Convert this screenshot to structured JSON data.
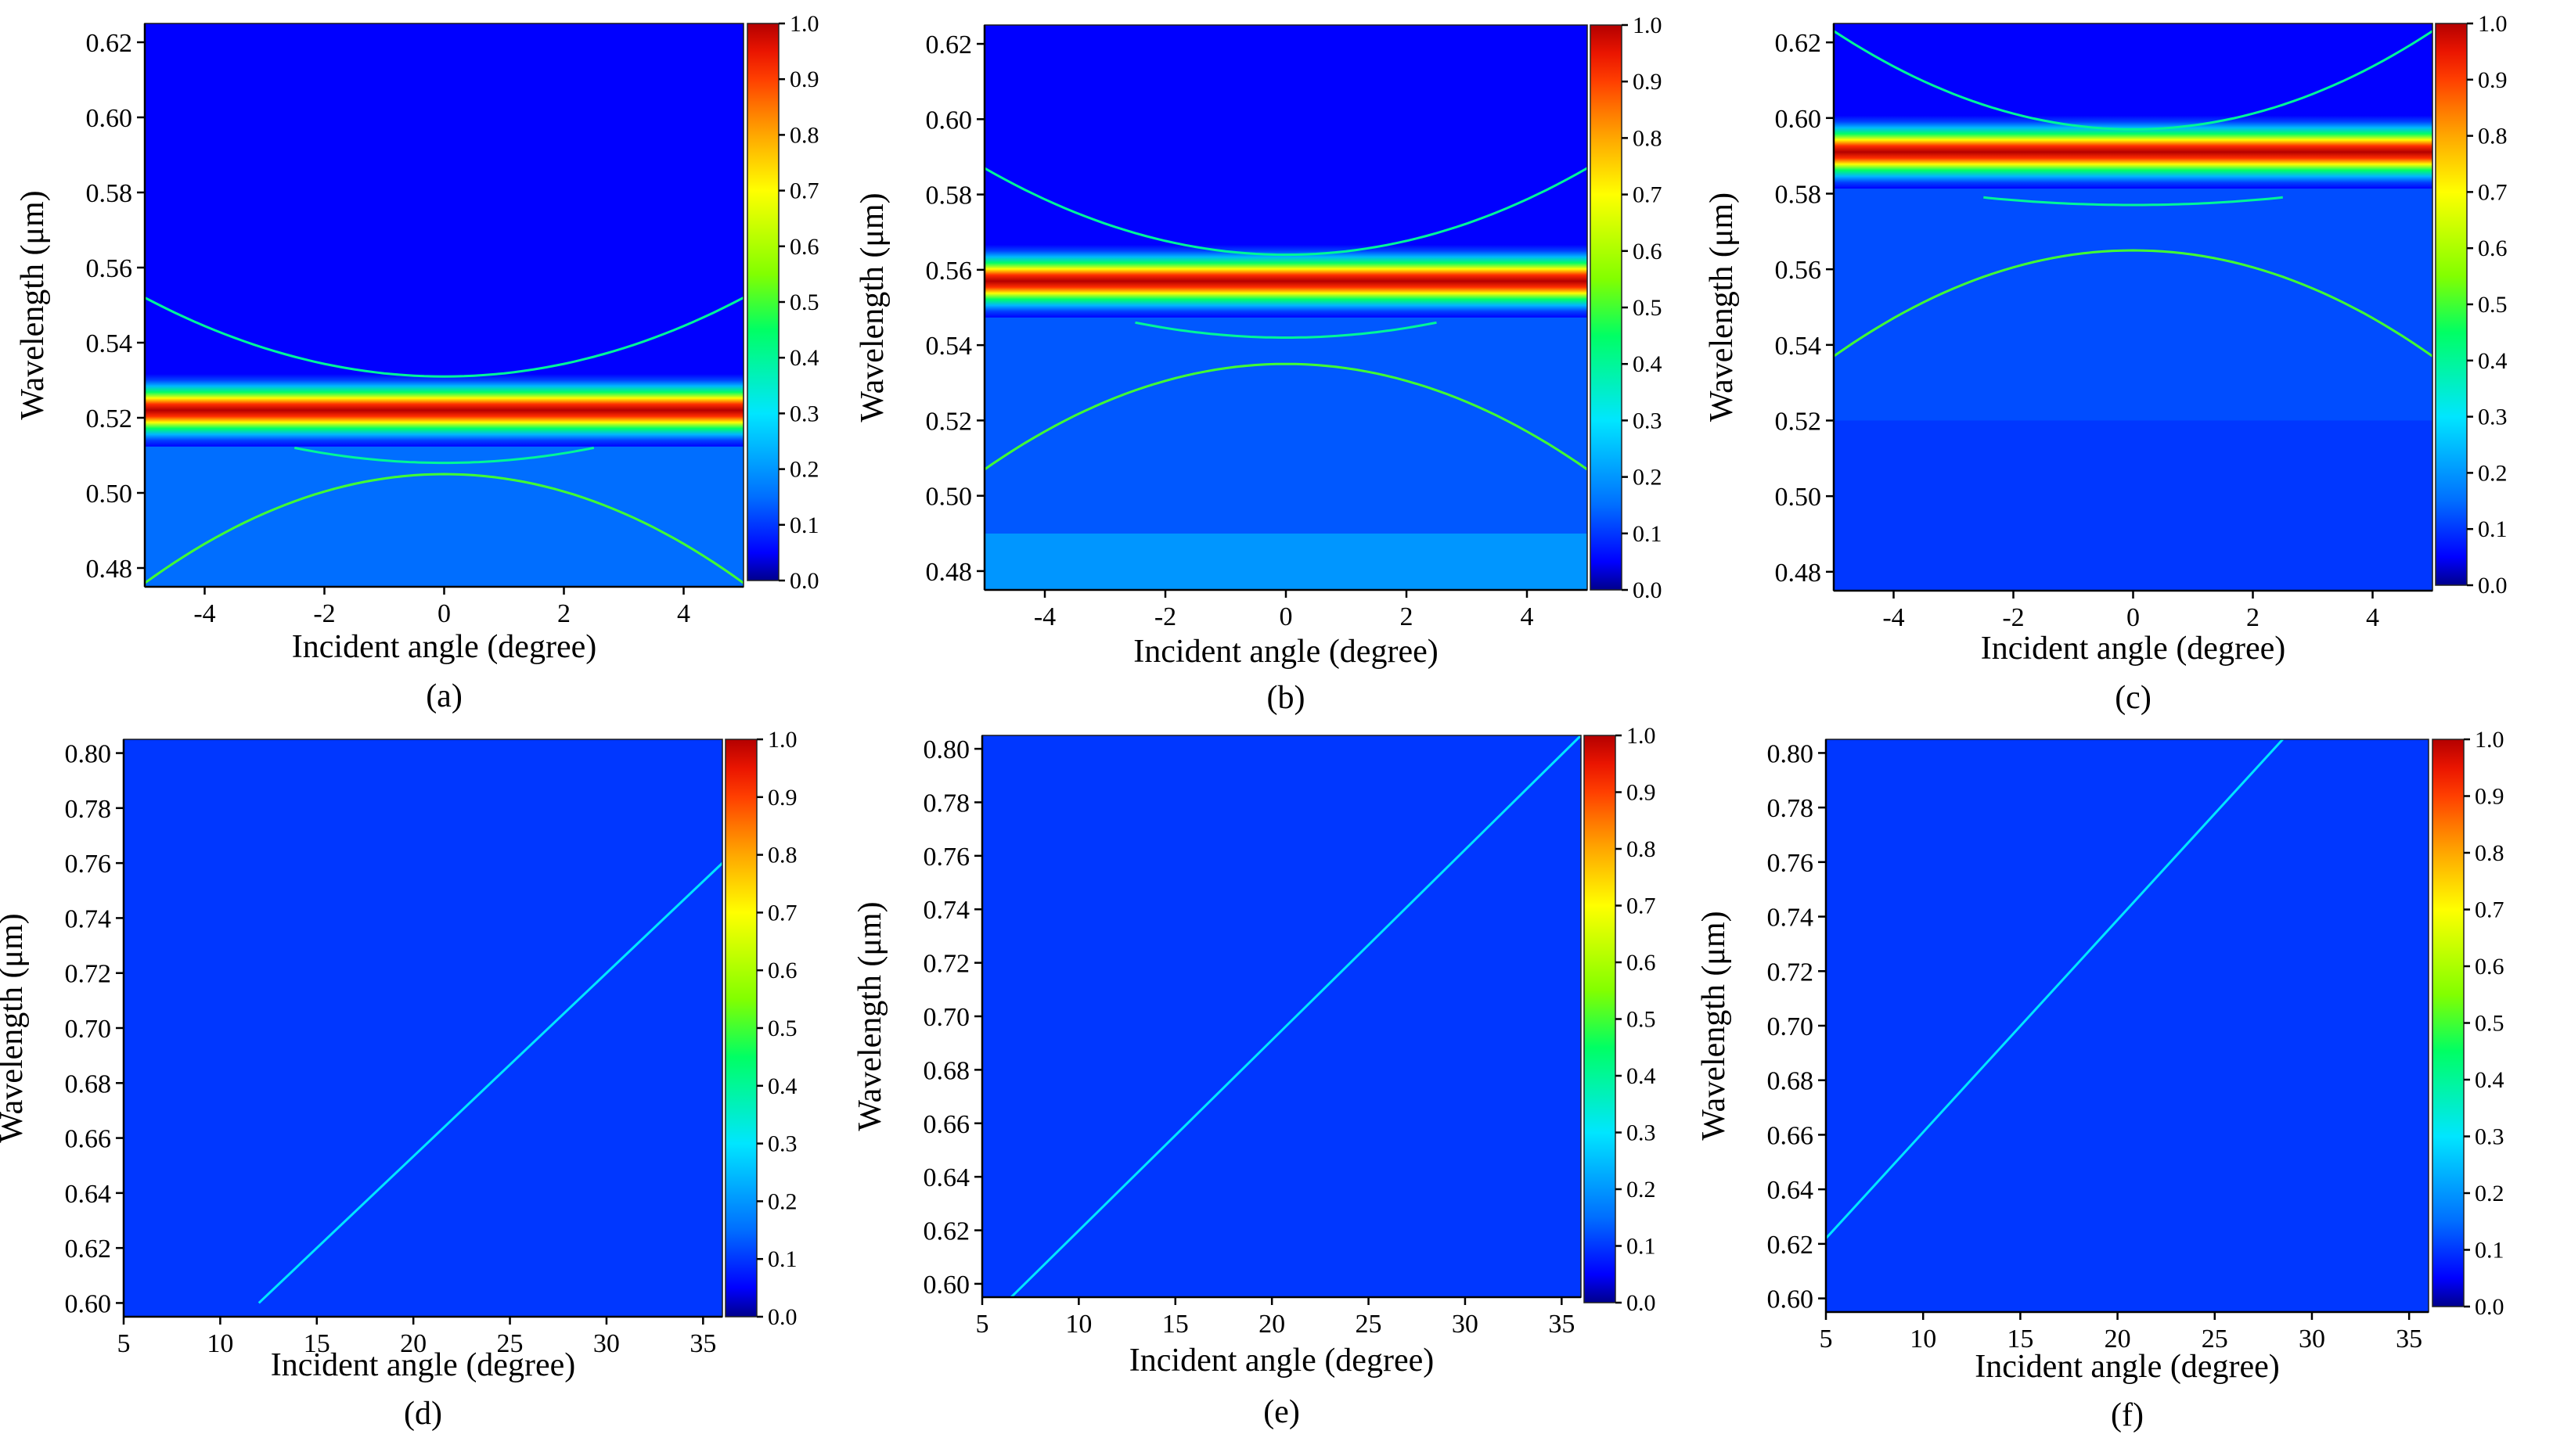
{
  "chart_data": [
    {
      "type": "heatmap",
      "panel": "(a)",
      "xlabel": "Incident angle (degree)",
      "ylabel": "Wavelength (μm)",
      "xlim": [
        -5,
        5
      ],
      "ylim": [
        0.475,
        0.625
      ],
      "xticks": [
        -4,
        -2,
        0,
        2,
        4
      ],
      "xtick_labels": [
        "-4",
        "-2",
        "0",
        "2",
        "4"
      ],
      "yticks": [
        0.48,
        0.5,
        0.52,
        0.54,
        0.56,
        0.58,
        0.6,
        0.62
      ],
      "ytick_labels": [
        "0.48",
        "0.50",
        "0.52",
        "0.54",
        "0.56",
        "0.58",
        "0.60",
        "0.62"
      ],
      "colorbar": {
        "range": [
          0.0,
          1.0
        ],
        "ticks": [
          0.0,
          0.1,
          0.2,
          0.3,
          0.4,
          0.5,
          0.6,
          0.7,
          0.8,
          0.9,
          1.0
        ],
        "tick_labels": [
          "0.0",
          "0.1",
          "0.2",
          "0.3",
          "0.4",
          "0.5",
          "0.6",
          "0.7",
          "0.8",
          "0.9",
          "1.0"
        ]
      },
      "background": 0.05,
      "regions": [
        {
          "from": 0.475,
          "to": 0.52,
          "value": 0.15
        }
      ],
      "bands": [
        {
          "center": 0.522,
          "width": 0.0042,
          "peak": 1.0
        }
      ],
      "curves": [
        {
          "type": "upper",
          "min": 0.531,
          "edge": 0.552,
          "value": 0.4
        },
        {
          "type": "lower",
          "max": 0.505,
          "edge": 0.476,
          "value": 0.5
        },
        {
          "type": "upper",
          "min": 0.508,
          "edge": 0.512,
          "value": 0.4,
          "span": 2.5
        }
      ]
    },
    {
      "type": "heatmap",
      "panel": "(b)",
      "xlabel": "Incident angle (degree)",
      "ylabel": "Wavelength (μm)",
      "xlim": [
        -5,
        5
      ],
      "ylim": [
        0.475,
        0.625
      ],
      "xticks": [
        -4,
        -2,
        0,
        2,
        4
      ],
      "xtick_labels": [
        "-4",
        "-2",
        "0",
        "2",
        "4"
      ],
      "yticks": [
        0.48,
        0.5,
        0.52,
        0.54,
        0.56,
        0.58,
        0.6,
        0.62
      ],
      "ytick_labels": [
        "0.48",
        "0.50",
        "0.52",
        "0.54",
        "0.56",
        "0.58",
        "0.60",
        "0.62"
      ],
      "colorbar": {
        "range": [
          0.0,
          1.0
        ],
        "ticks": [
          0.0,
          0.1,
          0.2,
          0.3,
          0.4,
          0.5,
          0.6,
          0.7,
          0.8,
          0.9,
          1.0
        ],
        "tick_labels": [
          "0.0",
          "0.1",
          "0.2",
          "0.3",
          "0.4",
          "0.5",
          "0.6",
          "0.7",
          "0.8",
          "0.9",
          "1.0"
        ]
      },
      "background": 0.05,
      "regions": [
        {
          "from": 0.49,
          "to": 0.553,
          "value": 0.13
        },
        {
          "from": 0.475,
          "to": 0.49,
          "value": 0.2
        }
      ],
      "bands": [
        {
          "center": 0.557,
          "width": 0.0042,
          "peak": 1.0
        }
      ],
      "curves": [
        {
          "type": "upper",
          "min": 0.564,
          "edge": 0.587,
          "value": 0.4
        },
        {
          "type": "lower",
          "max": 0.535,
          "edge": 0.507,
          "value": 0.5
        },
        {
          "type": "upper",
          "min": 0.542,
          "edge": 0.546,
          "value": 0.4,
          "span": 2.5
        }
      ]
    },
    {
      "type": "heatmap",
      "panel": "(c)",
      "xlabel": "Incident angle (degree)",
      "ylabel": "Wavelength (μm)",
      "xlim": [
        -5,
        5
      ],
      "ylim": [
        0.475,
        0.625
      ],
      "xticks": [
        -4,
        -2,
        0,
        2,
        4
      ],
      "xtick_labels": [
        "-4",
        "-2",
        "0",
        "2",
        "4"
      ],
      "yticks": [
        0.48,
        0.5,
        0.52,
        0.54,
        0.56,
        0.58,
        0.6,
        0.62
      ],
      "ytick_labels": [
        "0.48",
        "0.50",
        "0.52",
        "0.54",
        "0.56",
        "0.58",
        "0.60",
        "0.62"
      ],
      "colorbar": {
        "range": [
          0.0,
          1.0
        ],
        "ticks": [
          0.0,
          0.1,
          0.2,
          0.3,
          0.4,
          0.5,
          0.6,
          0.7,
          0.8,
          0.9,
          1.0
        ],
        "tick_labels": [
          "0.0",
          "0.1",
          "0.2",
          "0.3",
          "0.4",
          "0.5",
          "0.6",
          "0.7",
          "0.8",
          "0.9",
          "1.0"
        ]
      },
      "background": 0.05,
      "regions": [
        {
          "from": 0.52,
          "to": 0.587,
          "value": 0.12
        },
        {
          "from": 0.475,
          "to": 0.52,
          "value": 0.1
        }
      ],
      "bands": [
        {
          "center": 0.591,
          "width": 0.0042,
          "peak": 1.0
        }
      ],
      "curves": [
        {
          "type": "upper",
          "min": 0.597,
          "edge": 0.623,
          "value": 0.4
        },
        {
          "type": "lower",
          "max": 0.565,
          "edge": 0.537,
          "value": 0.5
        },
        {
          "type": "upper",
          "min": 0.577,
          "edge": 0.579,
          "value": 0.4,
          "span": 2.5
        }
      ]
    },
    {
      "type": "heatmap",
      "panel": "(d)",
      "xlabel": "Incident angle (degree)",
      "ylabel": "Wavelength (μm)",
      "xlim": [
        5,
        36
      ],
      "ylim": [
        0.595,
        0.805
      ],
      "xticks": [
        5,
        10,
        15,
        20,
        25,
        30,
        35
      ],
      "xtick_labels": [
        "5",
        "10",
        "15",
        "20",
        "25",
        "30",
        "35"
      ],
      "yticks": [
        0.6,
        0.62,
        0.64,
        0.66,
        0.68,
        0.7,
        0.72,
        0.74,
        0.76,
        0.78,
        0.8
      ],
      "ytick_labels": [
        "0.60",
        "0.62",
        "0.64",
        "0.66",
        "0.68",
        "0.70",
        "0.72",
        "0.74",
        "0.76",
        "0.78",
        "0.80"
      ],
      "colorbar": {
        "range": [
          0.0,
          1.0
        ],
        "ticks": [
          0.0,
          0.1,
          0.2,
          0.3,
          0.4,
          0.5,
          0.6,
          0.7,
          0.8,
          0.9,
          1.0
        ],
        "tick_labels": [
          "0.0",
          "0.1",
          "0.2",
          "0.3",
          "0.4",
          "0.5",
          "0.6",
          "0.7",
          "0.8",
          "0.9",
          "1.0"
        ]
      },
      "background": 0.1,
      "regions": [],
      "bands": [],
      "curves": [
        {
          "type": "linear",
          "points": [
            [
              12,
              0.6
            ],
            [
              36,
              0.76
            ]
          ],
          "value": 0.3
        }
      ]
    },
    {
      "type": "heatmap",
      "panel": "(e)",
      "xlabel": "Incident angle (degree)",
      "ylabel": "Wavelength (μm)",
      "xlim": [
        5,
        36
      ],
      "ylim": [
        0.595,
        0.805
      ],
      "xticks": [
        5,
        10,
        15,
        20,
        25,
        30,
        35
      ],
      "xtick_labels": [
        "5",
        "10",
        "15",
        "20",
        "25",
        "30",
        "35"
      ],
      "yticks": [
        0.6,
        0.62,
        0.64,
        0.66,
        0.68,
        0.7,
        0.72,
        0.74,
        0.76,
        0.78,
        0.8
      ],
      "ytick_labels": [
        "0.60",
        "0.62",
        "0.64",
        "0.66",
        "0.68",
        "0.70",
        "0.72",
        "0.74",
        "0.76",
        "0.78",
        "0.80"
      ],
      "colorbar": {
        "range": [
          0.0,
          1.0
        ],
        "ticks": [
          0.0,
          0.1,
          0.2,
          0.3,
          0.4,
          0.5,
          0.6,
          0.7,
          0.8,
          0.9,
          1.0
        ],
        "tick_labels": [
          "0.0",
          "0.1",
          "0.2",
          "0.3",
          "0.4",
          "0.5",
          "0.6",
          "0.7",
          "0.8",
          "0.9",
          "1.0"
        ]
      },
      "background": 0.1,
      "regions": [],
      "bands": [],
      "curves": [
        {
          "type": "linear",
          "points": [
            [
              6.5,
              0.595
            ],
            [
              36,
              0.805
            ]
          ],
          "value": 0.3
        }
      ]
    },
    {
      "type": "heatmap",
      "panel": "(f)",
      "xlabel": "Incident angle (degree)",
      "ylabel": "Wavelength (μm)",
      "xlim": [
        5,
        36
      ],
      "ylim": [
        0.595,
        0.805
      ],
      "xticks": [
        5,
        10,
        15,
        20,
        25,
        30,
        35
      ],
      "xtick_labels": [
        "5",
        "10",
        "15",
        "20",
        "25",
        "30",
        "35"
      ],
      "yticks": [
        0.6,
        0.62,
        0.64,
        0.66,
        0.68,
        0.7,
        0.72,
        0.74,
        0.76,
        0.78,
        0.8
      ],
      "ytick_labels": [
        "0.60",
        "0.62",
        "0.64",
        "0.66",
        "0.68",
        "0.70",
        "0.72",
        "0.74",
        "0.76",
        "0.78",
        "0.80"
      ],
      "colorbar": {
        "range": [
          0.0,
          1.0
        ],
        "ticks": [
          0.0,
          0.1,
          0.2,
          0.3,
          0.4,
          0.5,
          0.6,
          0.7,
          0.8,
          0.9,
          1.0
        ],
        "tick_labels": [
          "0.0",
          "0.1",
          "0.2",
          "0.3",
          "0.4",
          "0.5",
          "0.6",
          "0.7",
          "0.8",
          "0.9",
          "1.0"
        ]
      },
      "background": 0.1,
      "regions": [],
      "bands": [],
      "curves": [
        {
          "type": "linear",
          "points": [
            [
              5,
              0.622
            ],
            [
              28.5,
              0.805
            ]
          ],
          "value": 0.3
        }
      ]
    }
  ]
}
